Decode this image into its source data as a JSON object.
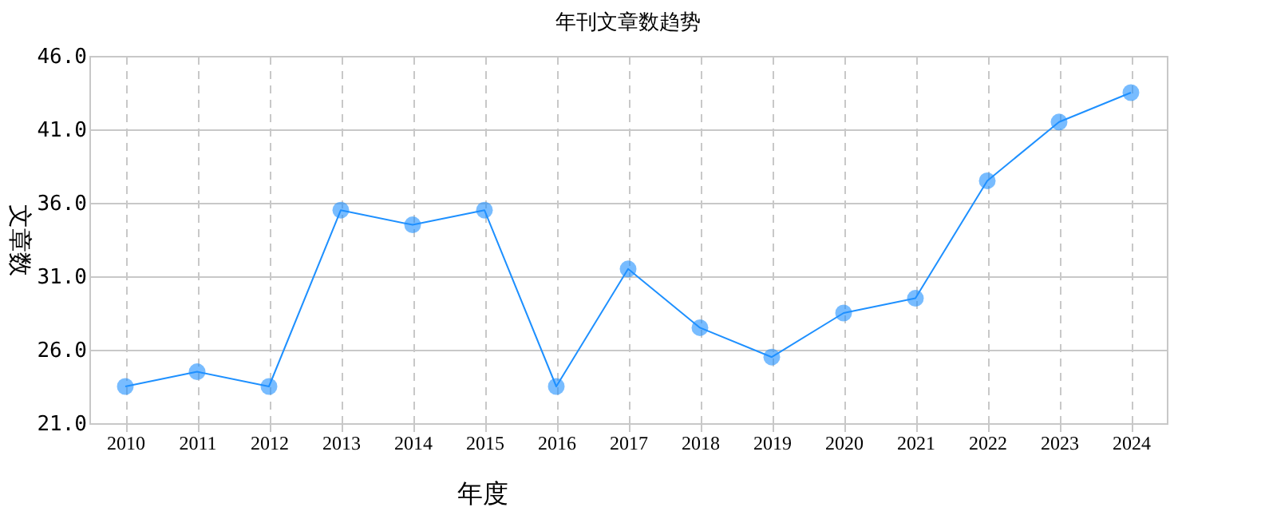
{
  "chart_data": {
    "type": "line",
    "title": "年刊文章数趋势",
    "xlabel": "年度",
    "ylabel": "文章数",
    "categories": [
      "2010",
      "2011",
      "2012",
      "2013",
      "2014",
      "2015",
      "2016",
      "2017",
      "2018",
      "2019",
      "2020",
      "2021",
      "2022",
      "2023",
      "2024"
    ],
    "series": [
      {
        "color": "#1e90ff",
        "values": [
          23.5,
          24.5,
          23.5,
          35.5,
          34.5,
          35.5,
          23.5,
          31.5,
          27.5,
          25.5,
          28.5,
          29.5,
          37.5,
          41.5,
          43.5
        ]
      }
    ],
    "ylim": [
      21,
      46
    ],
    "yticks": [
      {
        "value": 21,
        "label": "21.0"
      },
      {
        "value": 26,
        "label": "26.0"
      },
      {
        "value": 31,
        "label": "31.0"
      },
      {
        "value": 36,
        "label": "36.0"
      },
      {
        "value": 41,
        "label": "41.0"
      },
      {
        "value": 46,
        "label": "46.0"
      }
    ],
    "grid": true,
    "marker": "circle",
    "line_style": "solid"
  }
}
